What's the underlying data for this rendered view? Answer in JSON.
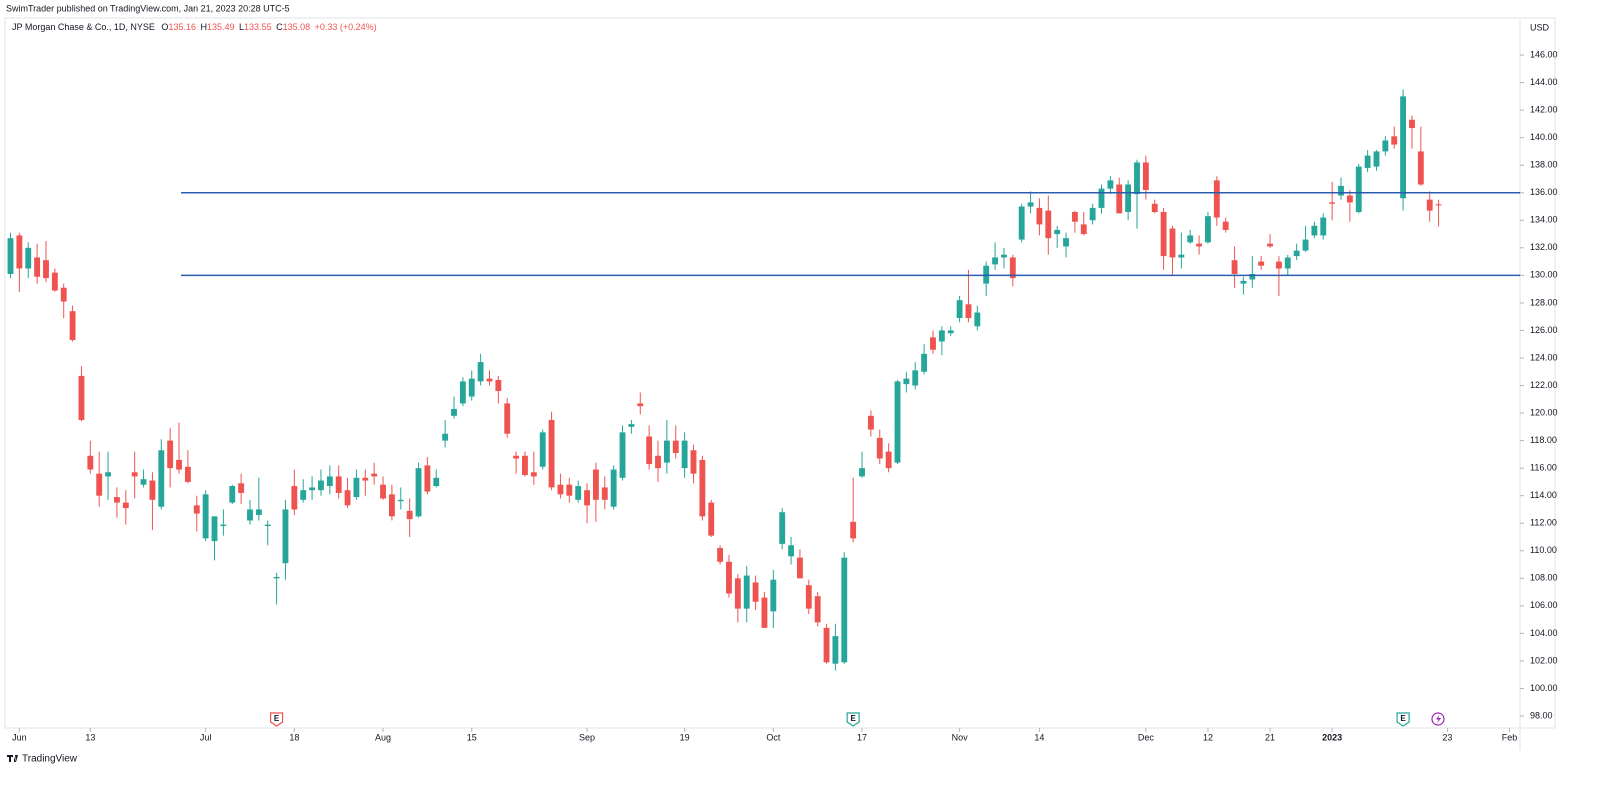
{
  "header": {
    "published": "SwimTrader published on TradingView.com, Jan 21, 2023 20:28 UTC-5"
  },
  "footer": {
    "brand": "TradingView"
  },
  "chart_data": {
    "type": "candlestick",
    "title": "JP Morgan Chase & Co., 1D, NYSE",
    "ohlc_legend": [
      {
        "label": "O",
        "value": "135.16"
      },
      {
        "label": "H",
        "value": "135.49"
      },
      {
        "label": "L",
        "value": "133.55"
      },
      {
        "label": "C",
        "value": "135.08"
      }
    ],
    "change": "+0.33 (+0.24%)",
    "currency": "USD",
    "up_color": "#26a69a",
    "down_color": "#ef5350",
    "level_color": "#2a5db0",
    "grid": false,
    "levels": [
      136,
      130
    ],
    "events": [
      {
        "value": 30,
        "label": "E",
        "color": "#ef5350"
      },
      {
        "value": 95,
        "label": "E",
        "color": "#26a69a"
      },
      {
        "value": 157,
        "label": "E",
        "color": "#26a69a"
      }
    ],
    "open": [
      130.1,
      132.9,
      130.5,
      131.3,
      131.1,
      130.2,
      129.1,
      127.4,
      122.7,
      116.9,
      115.6,
      115.4,
      113.9,
      113.5,
      115.7,
      114.8,
      115.1,
      113.2,
      118.0,
      116.6,
      116.1,
      113.3,
      110.9,
      110.7,
      111.8,
      113.5,
      114.9,
      112.2,
      112.6,
      111.8,
      108.0,
      109.1,
      114.7,
      113.7,
      114.4,
      114.4,
      114.7,
      115.4,
      114.4,
      113.9,
      115.3,
      115.6,
      114.8,
      114.1,
      113.6,
      112.9,
      112.5,
      116.2,
      114.7,
      118.0,
      119.8,
      120.7,
      121.2,
      122.3,
      122.5,
      122.4,
      120.7,
      116.9,
      116.9,
      115.7,
      116.1,
      119.5,
      114.8,
      114.8,
      113.7,
      114.4,
      115.9,
      114.6,
      113.2,
      115.3,
      119.0,
      120.7,
      118.3,
      116.9,
      116.4,
      118.0,
      116.0,
      117.3,
      116.6,
      113.5,
      110.2,
      109.2,
      108.0,
      105.8,
      107.7,
      106.6,
      105.6,
      110.5,
      109.6,
      109.5,
      107.5,
      106.7,
      104.4,
      101.8,
      101.9,
      112.1,
      115.4,
      119.8,
      118.2,
      117.2,
      116.4,
      122.1,
      122.0,
      123.0,
      125.5,
      125.2,
      125.8,
      126.9,
      127.9,
      126.3,
      129.4,
      130.8,
      131.3,
      131.3,
      132.6,
      135.0,
      134.9,
      134.7,
      133.0,
      132.1,
      134.6,
      133.7,
      134.0,
      134.9,
      136.3,
      136.6,
      134.6,
      135.9,
      138.2,
      135.2,
      134.6,
      133.4,
      131.3,
      132.4,
      132.3,
      132.4,
      136.9,
      133.9,
      131.1,
      129.4,
      129.7,
      131.0,
      132.3,
      131.0,
      130.5,
      131.4,
      131.8,
      132.9,
      132.9,
      135.3,
      135.8,
      135.8,
      134.6,
      137.8,
      137.9,
      139.0,
      140.1,
      135.6,
      141.3,
      139.0,
      135.5,
      135.16
    ],
    "high": [
      133.1,
      133.1,
      132.4,
      132.3,
      132.5,
      130.5,
      129.4,
      127.8,
      123.4,
      118.0,
      117.2,
      117.2,
      114.6,
      114.4,
      117.2,
      115.9,
      115.7,
      118.1,
      118.9,
      119.3,
      117.3,
      114.0,
      114.4,
      112.5,
      113.0,
      114.8,
      115.6,
      113.7,
      115.3,
      112.2,
      108.4,
      113.7,
      115.9,
      115.2,
      115.4,
      115.9,
      116.2,
      116.2,
      115.3,
      115.9,
      115.9,
      116.4,
      115.4,
      114.8,
      114.6,
      113.8,
      116.4,
      116.8,
      115.9,
      119.5,
      121.2,
      122.6,
      123.1,
      124.3,
      123.1,
      122.7,
      121.1,
      117.2,
      117.2,
      117.2,
      118.8,
      120.1,
      115.6,
      115.3,
      115.1,
      114.9,
      116.4,
      115.4,
      116.2,
      119.1,
      119.5,
      121.5,
      119.1,
      118.0,
      119.5,
      119.1,
      118.6,
      117.7,
      116.9,
      113.7,
      110.4,
      109.7,
      108.3,
      108.9,
      108.2,
      107.0,
      108.6,
      113.1,
      111.0,
      110.1,
      107.9,
      107.0,
      104.7,
      104.7,
      109.9,
      115.3,
      117.2,
      120.2,
      118.8,
      117.8,
      122.4,
      123.0,
      123.7,
      125.0,
      126.0,
      126.3,
      126.3,
      128.5,
      130.4,
      127.8,
      131.0,
      132.4,
      132.0,
      131.5,
      135.2,
      136.1,
      135.6,
      135.8,
      133.6,
      133.1,
      134.7,
      134.6,
      135.2,
      136.6,
      137.2,
      137.1,
      136.9,
      138.4,
      138.7,
      135.5,
      134.9,
      133.6,
      133.1,
      133.3,
      132.9,
      134.6,
      137.2,
      134.2,
      132.1,
      129.9,
      131.4,
      131.4,
      133.0,
      131.4,
      131.5,
      132.3,
      133.6,
      133.9,
      134.5,
      136.8,
      137.1,
      136.2,
      138.1,
      139.1,
      139.1,
      140.1,
      140.8,
      143.5,
      141.6,
      140.8,
      136.1,
      135.49
    ],
    "low": [
      129.8,
      128.8,
      129.8,
      129.4,
      129.5,
      128.8,
      126.9,
      125.2,
      119.4,
      115.6,
      113.2,
      113.7,
      112.4,
      111.9,
      113.8,
      114.6,
      111.5,
      113.0,
      114.6,
      115.6,
      114.9,
      111.4,
      110.7,
      109.3,
      111.1,
      113.4,
      113.4,
      111.9,
      112.2,
      110.4,
      106.1,
      107.9,
      112.6,
      113.5,
      113.7,
      114.0,
      114.1,
      113.8,
      113.1,
      113.7,
      114.0,
      114.8,
      113.7,
      112.2,
      113.0,
      111.0,
      112.4,
      114.1,
      114.6,
      117.5,
      119.6,
      120.5,
      120.9,
      122.0,
      122.0,
      120.7,
      118.2,
      115.6,
      115.4,
      114.8,
      115.9,
      114.4,
      113.8,
      113.5,
      113.5,
      112.0,
      112.1,
      113.0,
      113.0,
      115.1,
      118.5,
      119.9,
      115.9,
      115.0,
      115.6,
      116.7,
      115.3,
      114.9,
      112.2,
      111.0,
      109.0,
      106.6,
      104.8,
      104.8,
      105.7,
      104.4,
      104.4,
      110.1,
      109.0,
      108.0,
      105.4,
      104.5,
      101.8,
      101.3,
      101.8,
      110.6,
      115.3,
      118.3,
      116.3,
      115.7,
      116.3,
      121.5,
      121.7,
      122.8,
      124.3,
      124.2,
      125.6,
      126.6,
      126.6,
      126.0,
      128.5,
      130.4,
      130.5,
      129.2,
      132.4,
      134.5,
      132.9,
      131.5,
      132.0,
      131.3,
      133.1,
      132.9,
      133.7,
      134.5,
      135.9,
      134.5,
      134.0,
      133.4,
      135.5,
      134.5,
      130.4,
      130.0,
      130.5,
      132.3,
      131.5,
      132.3,
      133.6,
      133.1,
      129.1,
      128.6,
      129.1,
      130.4,
      132.0,
      128.5,
      130.0,
      131.1,
      131.7,
      132.7,
      132.6,
      134.0,
      135.5,
      133.9,
      134.5,
      137.5,
      137.6,
      138.7,
      139.2,
      134.7,
      139.2,
      136.5,
      133.9,
      133.55
    ],
    "close": [
      132.7,
      130.5,
      132.0,
      129.9,
      129.8,
      128.9,
      128.1,
      125.3,
      119.5,
      115.9,
      114.0,
      115.7,
      113.5,
      113.1,
      115.4,
      115.2,
      113.7,
      117.3,
      116.0,
      115.9,
      115.0,
      112.7,
      114.1,
      112.5,
      111.9,
      114.7,
      114.2,
      113.0,
      113.0,
      111.9,
      108.1,
      113.0,
      113.0,
      114.4,
      114.6,
      115.1,
      115.4,
      114.2,
      113.3,
      115.3,
      115.1,
      115.4,
      113.8,
      112.5,
      113.7,
      112.3,
      116.0,
      114.3,
      115.3,
      118.5,
      120.3,
      122.3,
      122.5,
      123.7,
      122.3,
      121.6,
      118.5,
      116.7,
      115.5,
      115.4,
      118.6,
      114.6,
      114.1,
      114.0,
      114.7,
      113.3,
      113.7,
      113.7,
      115.9,
      118.6,
      119.2,
      120.5,
      116.3,
      116.0,
      118.0,
      117.1,
      118.0,
      115.6,
      112.5,
      111.1,
      109.2,
      106.9,
      105.8,
      108.2,
      106.3,
      104.4,
      107.9,
      112.8,
      110.4,
      108.0,
      105.8,
      104.8,
      101.9,
      103.8,
      109.5,
      110.9,
      116.0,
      118.8,
      116.7,
      116.0,
      122.3,
      122.5,
      123.1,
      124.3,
      124.6,
      126.0,
      126.0,
      128.2,
      126.9,
      127.3,
      130.7,
      131.3,
      131.5,
      129.8,
      135.0,
      135.3,
      133.7,
      132.7,
      133.3,
      132.7,
      133.9,
      133.0,
      134.9,
      136.3,
      136.9,
      134.5,
      136.6,
      138.2,
      136.2,
      134.6,
      131.4,
      131.3,
      131.5,
      132.9,
      132.1,
      134.3,
      134.2,
      133.3,
      130.1,
      129.6,
      130.1,
      130.7,
      132.1,
      130.5,
      131.3,
      131.8,
      132.6,
      133.6,
      134.2,
      135.2,
      136.5,
      135.3,
      137.9,
      138.7,
      139.0,
      139.8,
      139.5,
      143.0,
      140.7,
      136.6,
      134.7,
      135.08
    ],
    "xlim": [
      -0.62,
      170.18
    ],
    "xticks": [
      {
        "value": 1,
        "label": "Jun"
      },
      {
        "value": 9,
        "label": "13"
      },
      {
        "value": 22,
        "label": "Jul"
      },
      {
        "value": 32,
        "label": "18"
      },
      {
        "value": 42,
        "label": "Aug"
      },
      {
        "value": 52,
        "label": "15"
      },
      {
        "value": 65,
        "label": "Sep"
      },
      {
        "value": 76,
        "label": "19"
      },
      {
        "value": 86,
        "label": "Oct"
      },
      {
        "value": 96,
        "label": "17"
      },
      {
        "value": 107,
        "label": "Nov"
      },
      {
        "value": 116,
        "label": "14"
      },
      {
        "value": 128,
        "label": "Dec"
      },
      {
        "value": 135,
        "label": "12"
      },
      {
        "value": 142,
        "label": "21"
      },
      {
        "value": 149,
        "label": "2023"
      },
      {
        "value": 162,
        "label": "23"
      },
      {
        "value": 169,
        "label": "Feb"
      }
    ],
    "ylim": [
      97.13,
      148.69
    ],
    "yticks": [
      {
        "value": 98,
        "label": "98.00"
      },
      {
        "value": 100,
        "label": "100.00"
      },
      {
        "value": 102,
        "label": "102.00"
      },
      {
        "value": 104,
        "label": "104.00"
      },
      {
        "value": 106,
        "label": "106.00"
      },
      {
        "value": 108,
        "label": "108.00"
      },
      {
        "value": 110,
        "label": "110.00"
      },
      {
        "value": 112,
        "label": "112.00"
      },
      {
        "value": 114,
        "label": "114.00"
      },
      {
        "value": 116,
        "label": "116.00"
      },
      {
        "value": 118,
        "label": "118.00"
      },
      {
        "value": 120,
        "label": "120.00"
      },
      {
        "value": 122,
        "label": "122.00"
      },
      {
        "value": 124,
        "label": "124.00"
      },
      {
        "value": 126,
        "label": "126.00"
      },
      {
        "value": 128,
        "label": "128.00"
      },
      {
        "value": 130,
        "label": "130.00"
      },
      {
        "value": 132,
        "label": "132.00"
      },
      {
        "value": 134,
        "label": "134.00"
      },
      {
        "value": 136,
        "label": "136.00"
      },
      {
        "value": 138,
        "label": "138.00"
      },
      {
        "value": 140,
        "label": "140.00"
      },
      {
        "value": 142,
        "label": "142.00"
      },
      {
        "value": 144,
        "label": "144.00"
      },
      {
        "value": 146,
        "label": "146.00"
      }
    ]
  }
}
